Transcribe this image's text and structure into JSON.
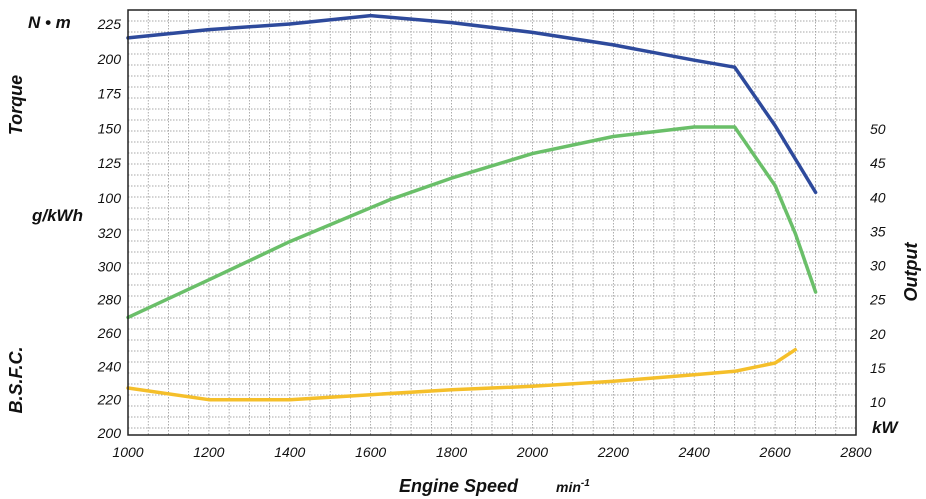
{
  "chart_data": {
    "type": "line",
    "x_axis": {
      "label": "Engine Speed",
      "unit": "min",
      "unit_sup": "-1",
      "ticks": [
        1000,
        1200,
        1400,
        1600,
        1800,
        2000,
        2200,
        2400,
        2600,
        2800
      ],
      "range": [
        1000,
        2800
      ]
    },
    "torque_axis": {
      "label": "Torque",
      "unit": "N • m",
      "ticks": [
        100,
        125,
        150,
        175,
        200,
        225
      ],
      "range": [
        100,
        225
      ]
    },
    "bsfc_axis": {
      "label": "B.S.F.C.",
      "unit": "g/kWh",
      "ticks": [
        200,
        220,
        240,
        260,
        280,
        300,
        320
      ],
      "range": [
        200,
        320
      ]
    },
    "output_axis": {
      "label": "Output",
      "unit": "kW",
      "ticks": [
        10,
        15,
        20,
        25,
        30,
        35,
        40,
        45,
        50
      ],
      "range": [
        10,
        50
      ]
    },
    "grid": true,
    "series": [
      {
        "axis": "torque",
        "color": "#2e4a9c",
        "points": [
          [
            1000,
            215
          ],
          [
            1200,
            221
          ],
          [
            1400,
            225
          ],
          [
            1600,
            231
          ],
          [
            1800,
            226
          ],
          [
            2000,
            219
          ],
          [
            2200,
            210
          ],
          [
            2400,
            199
          ],
          [
            2500,
            194
          ],
          [
            2600,
            152
          ],
          [
            2700,
            104
          ]
        ]
      },
      {
        "axis": "output",
        "color": "#6abf69",
        "points": [
          [
            1000,
            22.4
          ],
          [
            1200,
            27.9
          ],
          [
            1400,
            33.5
          ],
          [
            1650,
            39.7
          ],
          [
            1800,
            42.8
          ],
          [
            2000,
            46.4
          ],
          [
            2200,
            48.9
          ],
          [
            2400,
            50.3
          ],
          [
            2500,
            50.3
          ],
          [
            2600,
            41.7
          ],
          [
            2650,
            34.7
          ],
          [
            2700,
            26.1
          ]
        ]
      },
      {
        "axis": "bsfc",
        "color": "#f5bf2a",
        "points": [
          [
            1000,
            227
          ],
          [
            1200,
            220
          ],
          [
            1400,
            220
          ],
          [
            1600,
            223
          ],
          [
            1800,
            226
          ],
          [
            2000,
            228
          ],
          [
            2200,
            231
          ],
          [
            2400,
            235
          ],
          [
            2500,
            237
          ],
          [
            2600,
            242
          ],
          [
            2650,
            250
          ]
        ]
      }
    ]
  }
}
